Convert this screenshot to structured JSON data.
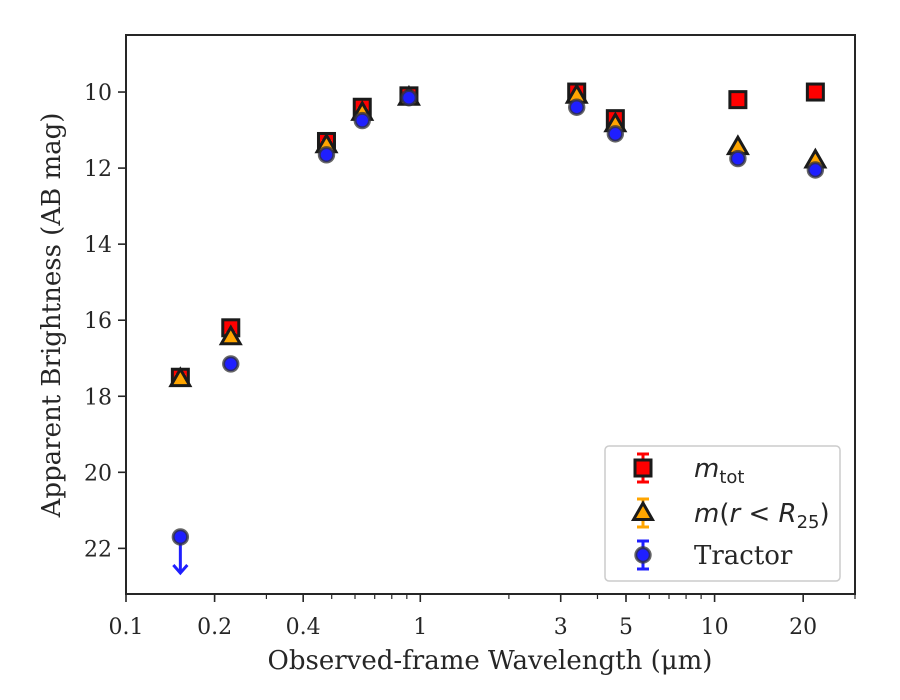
{
  "chart_data": {
    "type": "scatter",
    "xlabel": "Observed-frame Wavelength (μm)",
    "ylabel": "Apparent Brightness (AB mag)",
    "xscale": "log",
    "xlim": [
      0.1,
      30
    ],
    "ylim": [
      23.2,
      8.5
    ],
    "y_inverted": true,
    "x_ticks": [
      {
        "value": 0.1,
        "label": "0.1"
      },
      {
        "value": 0.2,
        "label": "0.2"
      },
      {
        "value": 0.4,
        "label": "0.4"
      },
      {
        "value": 1,
        "label": "1"
      },
      {
        "value": 3,
        "label": "3"
      },
      {
        "value": 5,
        "label": "5"
      },
      {
        "value": 10,
        "label": "10"
      },
      {
        "value": 20,
        "label": "20"
      }
    ],
    "y_ticks": [
      10,
      12,
      14,
      16,
      18,
      20,
      22
    ],
    "grid": false,
    "legend_position": "lower-right",
    "series": [
      {
        "name": "m_tot",
        "legend_label": {
          "main": "m",
          "sub": "tot"
        },
        "marker": "square",
        "color": "#ff0000",
        "edge_color": "#1a1a1a",
        "points": [
          {
            "x": 0.153,
            "y": 17.5,
            "err": 0.1
          },
          {
            "x": 0.227,
            "y": 16.2,
            "err": 0.1
          },
          {
            "x": 0.48,
            "y": 11.3,
            "err": 0.1
          },
          {
            "x": 0.635,
            "y": 10.4,
            "err": 0.1
          },
          {
            "x": 0.915,
            "y": 10.1,
            "err": 0.1
          },
          {
            "x": 3.4,
            "y": 10.0,
            "err": 0.05
          },
          {
            "x": 4.6,
            "y": 10.7,
            "err": 0.05
          },
          {
            "x": 12.0,
            "y": 10.2,
            "err": 0.05
          },
          {
            "x": 22.0,
            "y": 10.0,
            "err": 0.05
          }
        ]
      },
      {
        "name": "m(r < R_25)",
        "legend_label": {
          "main": "m(r < R",
          "sub": "25",
          "tail": ")"
        },
        "marker": "triangle",
        "color": "#ffa500",
        "edge_color": "#1a1a1a",
        "points": [
          {
            "x": 0.153,
            "y": 17.55,
            "err": 0.1
          },
          {
            "x": 0.227,
            "y": 16.45,
            "err": 0.1
          },
          {
            "x": 0.48,
            "y": 11.4,
            "err": 0.1
          },
          {
            "x": 0.635,
            "y": 10.55,
            "err": 0.1
          },
          {
            "x": 0.915,
            "y": 10.15,
            "err": 0.1
          },
          {
            "x": 3.4,
            "y": 10.1,
            "err": 0.05
          },
          {
            "x": 4.6,
            "y": 10.85,
            "err": 0.05
          },
          {
            "x": 12.0,
            "y": 11.45,
            "err": 0.05
          },
          {
            "x": 22.0,
            "y": 11.8,
            "err": 0.05
          }
        ]
      },
      {
        "name": "Tractor",
        "legend_label": {
          "main": "Tractor"
        },
        "marker": "circle",
        "color": "#1f1fff",
        "edge_color": "#333333",
        "points": [
          {
            "x": 0.153,
            "y": 21.7,
            "err": 0.0,
            "upper_limit": true
          },
          {
            "x": 0.227,
            "y": 17.15,
            "err": 0.05
          },
          {
            "x": 0.48,
            "y": 11.65,
            "err": 0.05
          },
          {
            "x": 0.635,
            "y": 10.75,
            "err": 0.05
          },
          {
            "x": 0.915,
            "y": 10.15,
            "err": 0.05
          },
          {
            "x": 3.4,
            "y": 10.4,
            "err": 0.05
          },
          {
            "x": 4.6,
            "y": 11.1,
            "err": 0.05
          },
          {
            "x": 12.0,
            "y": 11.75,
            "err": 0.05
          },
          {
            "x": 22.0,
            "y": 12.05,
            "err": 0.05
          }
        ]
      }
    ]
  }
}
